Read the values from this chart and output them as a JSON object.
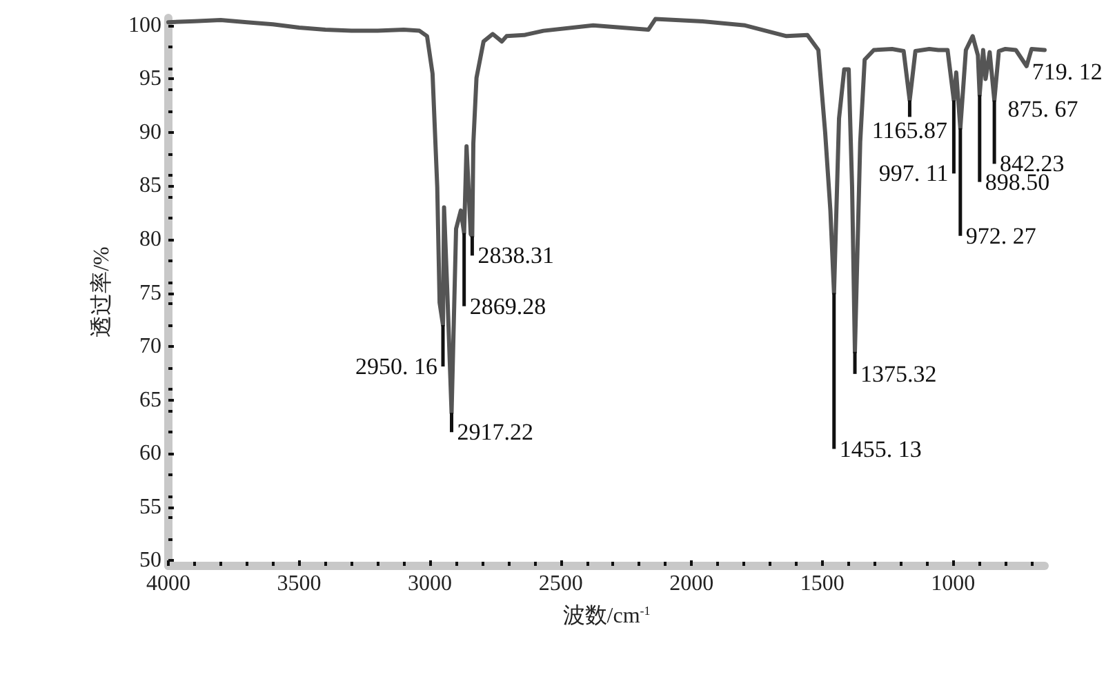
{
  "chart_data": {
    "type": "line",
    "xlabel": "波数/cm$^{-1}$",
    "ylabel": "透过率/%",
    "xlim": [
      4000,
      650
    ],
    "xticks": [
      4000,
      3500,
      3000,
      2500,
      2000,
      1500,
      1000
    ],
    "ylim": [
      49.5,
      100.7
    ],
    "yticks": [
      50,
      55,
      60,
      65,
      70,
      75,
      80,
      85,
      90,
      95,
      100
    ],
    "grid": false,
    "marker": "none",
    "line_style": "solid",
    "series": [
      {
        "color": "#555555",
        "x": [
          4000,
          3900,
          3800,
          3700,
          3600,
          3500,
          3400,
          3300,
          3200,
          3100,
          3040,
          3011,
          2990,
          2972,
          2963,
          2950.16,
          2946,
          2934,
          2917.22,
          2900,
          2882,
          2869.28,
          2860,
          2844,
          2838.31,
          2834,
          2822,
          2795,
          2760,
          2725,
          2707,
          2640,
          2566,
          2376,
          2165,
          2138,
          1969,
          1795,
          1637,
          1557,
          1515,
          1489,
          1469,
          1455.13,
          1436,
          1416,
          1399,
          1386,
          1375.32,
          1355,
          1338,
          1303,
          1233,
          1189,
          1165.87,
          1144,
          1091,
          1056,
          1021,
          997.11,
          988,
          972.27,
          951,
          925,
          905,
          898.5,
          885,
          875.67,
          860,
          842.23,
          825,
          800,
          760,
          719.12,
          700,
          650
        ],
        "values": [
          100.3,
          100.4,
          100.5,
          100.3,
          100.1,
          99.8,
          99.6,
          99.5,
          99.5,
          99.6,
          99.5,
          99,
          95.5,
          84.9,
          74.1,
          72,
          83,
          75.4,
          63.8,
          81,
          82.7,
          80.6,
          88.7,
          80.5,
          80.3,
          89,
          95.1,
          98.5,
          99.2,
          98.5,
          99,
          99.1,
          99.5,
          100,
          99.6,
          100.6,
          100.4,
          100,
          99,
          99.1,
          97.7,
          90,
          82.7,
          75,
          91.3,
          95.9,
          95.9,
          84.9,
          69.5,
          89.1,
          96.8,
          97.7,
          97.8,
          97.6,
          93,
          97.6,
          97.8,
          97.7,
          97.7,
          93,
          95.6,
          90.4,
          97.7,
          99,
          97.2,
          93.5,
          97.7,
          95,
          97.5,
          93,
          97.6,
          97.8,
          97.7,
          96.2,
          97.8,
          97.7
        ]
      }
    ],
    "annotations": [
      {
        "text": "2950. 16",
        "x": 2950.16,
        "y": 72
      },
      {
        "text": "2917.22",
        "x": 2917.22,
        "y": 63.8
      },
      {
        "text": "2869.28",
        "x": 2869.28,
        "y": 80.6
      },
      {
        "text": "2838.31",
        "x": 2838.31,
        "y": 80.3
      },
      {
        "text": "1455. 13",
        "x": 1455.13,
        "y": 75
      },
      {
        "text": "1375.32",
        "x": 1375.32,
        "y": 69.5
      },
      {
        "text": "1165.87",
        "x": 1165.87,
        "y": 93
      },
      {
        "text": "997. 11",
        "x": 997.11,
        "y": 93
      },
      {
        "text": "972. 27",
        "x": 972.27,
        "y": 90.4
      },
      {
        "text": "898.50",
        "x": 898.5,
        "y": 93.5
      },
      {
        "text": "875. 67",
        "x": 875.67,
        "y": 95
      },
      {
        "text": "842.23",
        "x": 842.23,
        "y": 93
      },
      {
        "text": "719. 12",
        "x": 719.12,
        "y": 96.2
      }
    ]
  }
}
